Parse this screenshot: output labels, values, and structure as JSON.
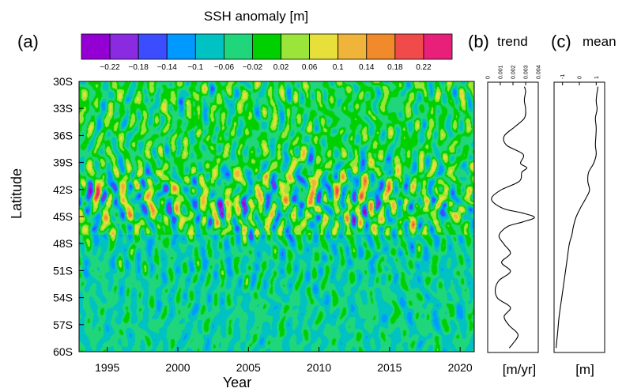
{
  "colorbar": {
    "title": "SSH anomaly [m]",
    "colors": [
      "#9400d3",
      "#8a2be2",
      "#3c4cff",
      "#0099ff",
      "#00c2c2",
      "#1fd67a",
      "#00d000",
      "#9be53a",
      "#e8e03a",
      "#f0b43a",
      "#f08a2a",
      "#f04a4a",
      "#e8207a"
    ],
    "tick_labels": [
      "−0.22",
      "−0.18",
      "−0.14",
      "−0.1",
      "−0.06",
      "−0.02",
      "0.02",
      "0.06",
      "0.1",
      "0.14",
      "0.18",
      "0.22"
    ]
  },
  "chart_data": [
    {
      "panel": "(a)",
      "type": "heatmap",
      "xlabel": "Year",
      "ylabel": "Latitude",
      "xlim": [
        1993,
        2021
      ],
      "ylim": [
        -60,
        -30
      ],
      "x_ticks": [
        1995,
        2000,
        2005,
        2010,
        2015,
        2020
      ],
      "x_tick_labels": [
        "1995",
        "2000",
        "2005",
        "2010",
        "2015",
        "2020"
      ],
      "y_ticks": [
        -30,
        -33,
        -36,
        -39,
        -42,
        -45,
        -48,
        -51,
        -54,
        -57,
        -60
      ],
      "y_tick_labels": [
        "30S",
        "33S",
        "36S",
        "39S",
        "42S",
        "45S",
        "48S",
        "51S",
        "54S",
        "57S",
        "60S"
      ],
      "color_scale": {
        "min": -0.24,
        "max": 0.24,
        "step": 0.04
      },
      "band_anomaly_std": [
        {
          "lat": -30,
          "std": 0.09
        },
        {
          "lat": -36,
          "std": 0.09
        },
        {
          "lat": -40,
          "std": 0.13
        },
        {
          "lat": -43.5,
          "std": 0.22
        },
        {
          "lat": -46,
          "std": 0.14
        },
        {
          "lat": -48,
          "std": 0.07
        },
        {
          "lat": -60,
          "std": 0.05
        }
      ]
    },
    {
      "panel": "(b)",
      "title": "trend",
      "type": "line",
      "xlabel": "[m/yr]",
      "xlim": [
        0,
        0.004
      ],
      "x_ticks": [
        0,
        0.001,
        0.002,
        0.003,
        0.004
      ],
      "x_tick_labels": [
        "0",
        "0.001",
        "0.002",
        "0.003",
        "0.004"
      ],
      "lat": [
        -30.5,
        -31,
        -32,
        -33,
        -34,
        -35,
        -36,
        -37,
        -38,
        -39,
        -39.5,
        -40,
        -41,
        -42,
        -43,
        -44,
        -44.5,
        -45,
        -45.5,
        -46,
        -47,
        -48,
        -49,
        -50,
        -51,
        -52,
        -53,
        -54,
        -55,
        -56,
        -57,
        -58,
        -59,
        -59.5
      ],
      "x": [
        0.0029,
        0.003,
        0.0029,
        0.003,
        0.0029,
        0.0021,
        0.0013,
        0.0015,
        0.0028,
        0.0026,
        0.0031,
        0.0027,
        0.0025,
        0.001,
        0.0003,
        0.0012,
        0.0027,
        0.0037,
        0.0028,
        0.0016,
        0.0009,
        0.0013,
        0.0018,
        0.0011,
        0.0018,
        0.0009,
        0.0006,
        0.0008,
        0.0018,
        0.0013,
        0.0017,
        0.0024,
        0.002,
        0.0017
      ]
    },
    {
      "panel": "(c)",
      "title": "mean",
      "type": "line",
      "xlabel": "[m]",
      "xlim": [
        -1.5,
        1.5
      ],
      "x_ticks": [
        -1,
        0,
        1
      ],
      "x_tick_labels": [
        "-1",
        "0",
        "1"
      ],
      "lat": [
        -30.5,
        -32,
        -33,
        -34,
        -35,
        -36,
        -37,
        -38,
        -39,
        -40,
        -41,
        -42,
        -43,
        -44,
        -45,
        -46,
        -47,
        -48,
        -50,
        -52,
        -54,
        -56,
        -58,
        -59.5
      ],
      "x": [
        1.1,
        1.0,
        1.05,
        0.95,
        1.0,
        0.98,
        0.95,
        1.0,
        0.85,
        0.55,
        0.5,
        0.6,
        0.35,
        0.05,
        -0.2,
        -0.35,
        -0.45,
        -0.6,
        -0.75,
        -0.9,
        -1.05,
        -1.2,
        -1.3,
        -1.38
      ]
    }
  ],
  "labels": {
    "panel_a": "(a)",
    "panel_b": "(b)",
    "panel_c": "(c)"
  }
}
